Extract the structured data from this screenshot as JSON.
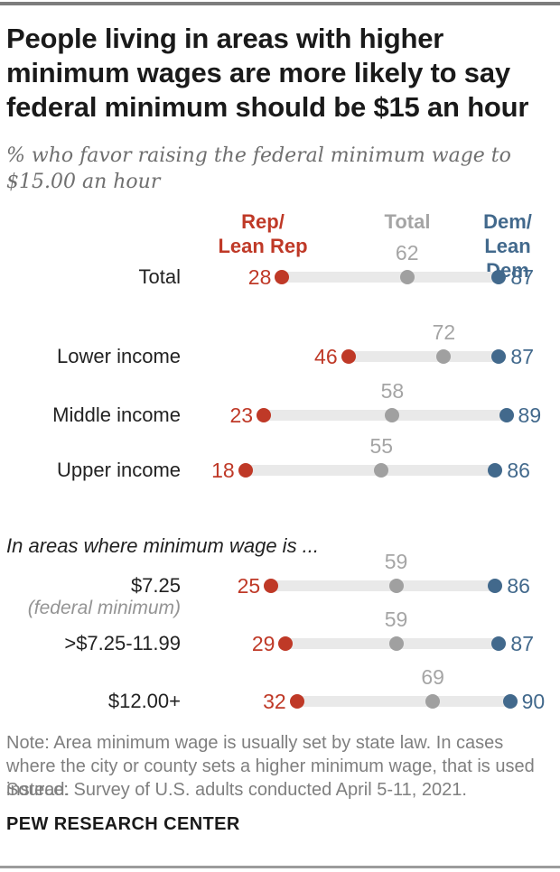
{
  "header": {
    "title": "People living in areas with higher minimum wages are more likely to say federal minimum should be $15 an hour",
    "subtitle": "% who favor raising the federal minimum wage to $15.00 an hour"
  },
  "colors": {
    "rep": "#bf3927",
    "dem": "#42698c",
    "total_dot": "#a0a0a0",
    "total_text": "#a5a5a5",
    "track": "#e9e9e9"
  },
  "chart_data": {
    "type": "dumbbell",
    "xlim": [
      0,
      100
    ],
    "legend": {
      "rep_label": "Rep/\nLean Rep",
      "total_label": "Total",
      "dem_label": "Dem/\nLean Dem"
    },
    "section_label": "In areas where minimum wage is ...",
    "series_names": [
      "Rep/Lean Rep",
      "Total",
      "Dem/Lean Dem"
    ],
    "rows": [
      {
        "category": "Total",
        "sublabel": "",
        "rep": 28,
        "total": 62,
        "dem": 87
      },
      {
        "category": "Lower income",
        "sublabel": "",
        "rep": 46,
        "total": 72,
        "dem": 87
      },
      {
        "category": "Middle income",
        "sublabel": "",
        "rep": 23,
        "total": 58,
        "dem": 89
      },
      {
        "category": "Upper income",
        "sublabel": "",
        "rep": 18,
        "total": 55,
        "dem": 86
      },
      {
        "category": "$7.25",
        "sublabel": "(federal minimum)",
        "rep": 25,
        "total": 59,
        "dem": 86
      },
      {
        "category": ">$7.25-11.99",
        "sublabel": "",
        "rep": 29,
        "total": 59,
        "dem": 87
      },
      {
        "category": "$12.00+",
        "sublabel": "",
        "rep": 32,
        "total": 69,
        "dem": 90
      }
    ]
  },
  "footer": {
    "note": "Note: Area minimum wage is usually set by state law. In cases where the city or county sets a higher minimum wage, that is used instead.",
    "source": "Source: Survey of U.S. adults conducted April 5-11, 2021.",
    "brand": "PEW RESEARCH CENTER"
  }
}
